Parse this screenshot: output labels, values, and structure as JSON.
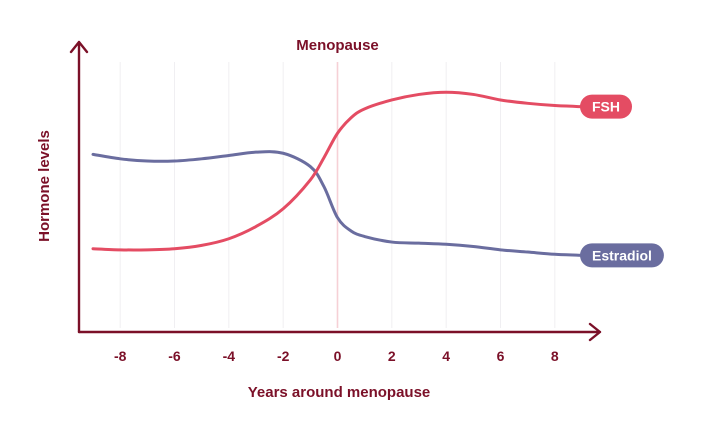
{
  "chart_data": {
    "type": "line",
    "title": "",
    "xlabel": "Years around menopause",
    "ylabel": "Hormone levels",
    "xlim": [
      -9,
      9
    ],
    "ylim": [
      0,
      100
    ],
    "x_ticks": [
      -8,
      -6,
      -4,
      -2,
      0,
      2,
      4,
      6,
      8
    ],
    "x_tick_labels": [
      "-8",
      "-6",
      "-4",
      "-2",
      "0",
      "2",
      "4",
      "6",
      "8"
    ],
    "y_tick_labels": [],
    "grid": "vertical",
    "annotations": [
      {
        "text": "Menopause",
        "x": 0
      }
    ],
    "series": [
      {
        "name": "FSH",
        "color": "#e44c63",
        "x": [
          -9,
          -8,
          -7,
          -6,
          -5,
          -4,
          -3,
          -2,
          -1,
          -0.5,
          0,
          0.5,
          1,
          2,
          3,
          4,
          5,
          6,
          7,
          8,
          9
        ],
        "values": [
          24,
          23.5,
          23.5,
          24,
          25.5,
          28.5,
          34,
          42,
          55,
          65,
          76,
          83,
          87,
          91,
          93.5,
          94.5,
          93.5,
          91,
          89.5,
          88.5,
          88
        ]
      },
      {
        "name": "Estradiol",
        "color": "#6a6d9f",
        "x": [
          -9,
          -8,
          -7,
          -6,
          -5,
          -4,
          -3,
          -2,
          -1,
          -0.5,
          0,
          0.5,
          1,
          2,
          3,
          4,
          5,
          6,
          7,
          8,
          9
        ],
        "values": [
          66.5,
          64.5,
          63.5,
          63.5,
          64.5,
          66,
          67.5,
          67,
          61,
          52,
          38,
          32,
          29.5,
          27,
          26.5,
          26,
          25,
          23.5,
          22.5,
          21.5,
          21
        ]
      }
    ]
  },
  "colors": {
    "axis": "#7b1028",
    "text": "#7b1028",
    "grid": "#f0eff2",
    "menopause_line": "#f6d0d6",
    "fsh": "#e44c63",
    "estradiol": "#6a6d9f"
  }
}
